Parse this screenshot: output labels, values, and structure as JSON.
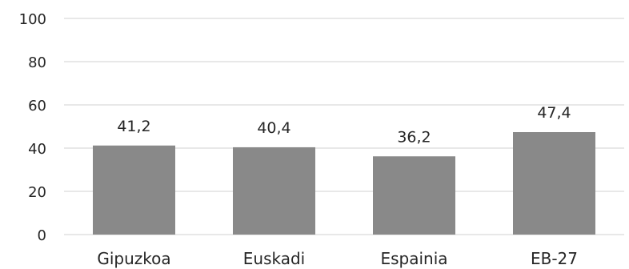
{
  "chart_data": {
    "type": "bar",
    "categories": [
      "Gipuzkoa",
      "Euskadi",
      "Espainia",
      "EB-27"
    ],
    "values": [
      41.2,
      40.4,
      36.2,
      47.4
    ],
    "data_labels": [
      "41,2",
      "40,4",
      "36,2",
      "47,4"
    ],
    "ylim": [
      0,
      100
    ],
    "yticks": [
      0,
      20,
      40,
      60,
      80,
      100
    ],
    "ytick_labels": [
      "0",
      "20",
      "40",
      "60",
      "80",
      "100"
    ],
    "grid": true,
    "colors": {
      "bar": "#898989",
      "grid": "#d9d9d9",
      "text": "#262626"
    }
  }
}
